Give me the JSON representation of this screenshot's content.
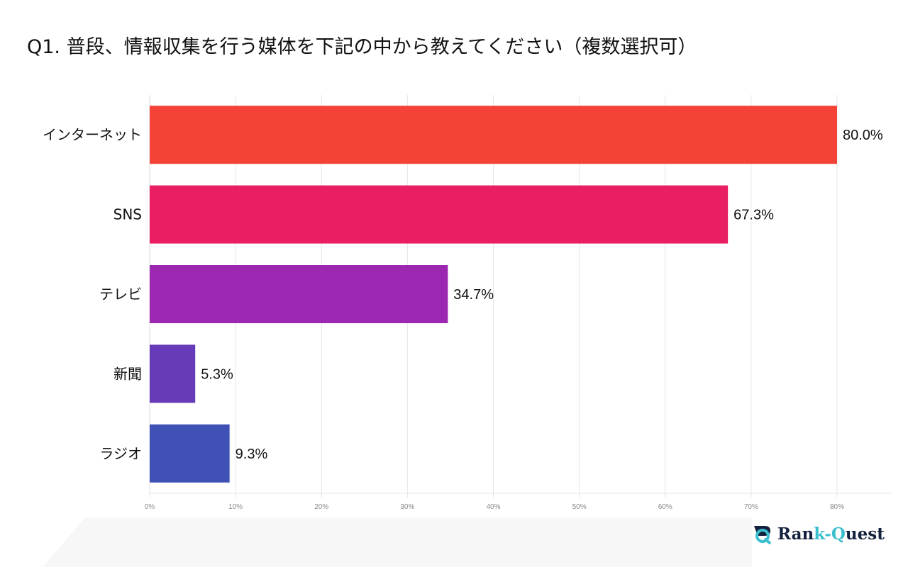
{
  "title": "Q1. 普段、情報収集を行う媒体を下記の中から教えてください（複数選択可）",
  "chart_data": {
    "type": "bar",
    "orientation": "horizontal",
    "title": "Q1. 普段、情報収集を行う媒体を下記の中から教えてください（複数選択可）",
    "categories": [
      "インターネット",
      "SNS",
      "テレビ",
      "新聞",
      "ラジオ"
    ],
    "values": [
      80.0,
      67.3,
      34.7,
      5.3,
      9.3
    ],
    "data_labels": [
      "80.0%",
      "67.3%",
      "34.7%",
      "5.3%",
      "9.3%"
    ],
    "colors": [
      "#F44336",
      "#E91E63",
      "#9C27B0",
      "#673AB7",
      "#3F51B5"
    ],
    "xlim": [
      0,
      80
    ],
    "xticks": [
      0,
      10,
      20,
      30,
      40,
      50,
      60,
      70,
      80
    ],
    "xtick_labels": [
      "0%",
      "10%",
      "20%",
      "30%",
      "40%",
      "50%",
      "60%",
      "70%",
      "80%"
    ],
    "grid": true,
    "legend": "none"
  },
  "logo": {
    "text_part1": "Ran",
    "text_part2": "k-",
    "text_part3": "Q",
    "text_part4": "uest",
    "full": "Rank-Quest",
    "colors": [
      "#14213d",
      "#3bbfcf"
    ]
  }
}
